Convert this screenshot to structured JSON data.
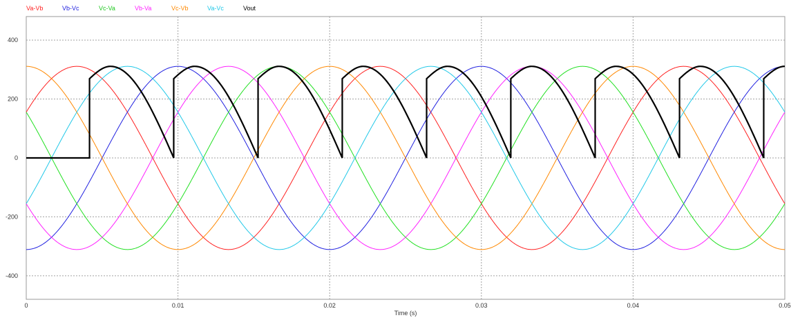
{
  "chart_data": {
    "type": "line",
    "xlabel": "Time (s)",
    "ylabel": "",
    "xlim": [
      0,
      0.05
    ],
    "ylim": [
      -480,
      480
    ],
    "x_ticks": [
      0,
      0.01,
      0.02,
      0.03,
      0.04,
      0.05
    ],
    "x_tick_labels": [
      "0",
      "0.01",
      "0.02",
      "0.03",
      "0.04",
      "0.05"
    ],
    "y_ticks": [
      -400,
      -200,
      0,
      200,
      400
    ],
    "y_tick_labels": [
      "-400",
      "-200",
      "0",
      "200",
      "400"
    ],
    "grid": true,
    "legend_position": "top-left",
    "series": [
      {
        "name": "Va-Vb",
        "color": "#ff2020",
        "amplitude": 311,
        "frequency_hz": 50,
        "phase_deg": 30
      },
      {
        "name": "Vb-Vc",
        "color": "#2020e0",
        "amplitude": 311,
        "frequency_hz": 50,
        "phase_deg": -90
      },
      {
        "name": "Vc-Va",
        "color": "#20e020",
        "amplitude": 311,
        "frequency_hz": 50,
        "phase_deg": 150
      },
      {
        "name": "Vb-Va",
        "color": "#ff20ff",
        "amplitude": 311,
        "frequency_hz": 50,
        "phase_deg": -150
      },
      {
        "name": "Vc-Vb",
        "color": "#ff8800",
        "amplitude": 311,
        "frequency_hz": 50,
        "phase_deg": 90
      },
      {
        "name": "Va-Vc",
        "color": "#20c8e8",
        "amplitude": 311,
        "frequency_hz": 50,
        "phase_deg": -30
      },
      {
        "name": "Vout",
        "color": "#000000",
        "description_points": [
          [
            0,
            0
          ],
          [
            0.00417,
            0
          ],
          [
            0.00417,
            269
          ],
          [
            0.00556,
            311
          ],
          [
            0.00972,
            0
          ],
          [
            0.00972,
            269
          ],
          [
            0.01111,
            311
          ],
          [
            0.01528,
            0
          ],
          [
            0.01528,
            269
          ],
          [
            0.01667,
            311
          ],
          [
            0.02083,
            0
          ],
          [
            0.02083,
            269
          ],
          [
            0.02222,
            311
          ],
          [
            0.02639,
            0
          ],
          [
            0.02639,
            269
          ],
          [
            0.02778,
            311
          ],
          [
            0.03194,
            0
          ],
          [
            0.03194,
            269
          ],
          [
            0.03333,
            311
          ],
          [
            0.0375,
            0
          ],
          [
            0.0375,
            269
          ],
          [
            0.03889,
            311
          ],
          [
            0.04306,
            0
          ],
          [
            0.04306,
            269
          ],
          [
            0.04444,
            311
          ],
          [
            0.04861,
            0
          ],
          [
            0.04861,
            269
          ],
          [
            0.05,
            311
          ]
        ]
      }
    ]
  }
}
